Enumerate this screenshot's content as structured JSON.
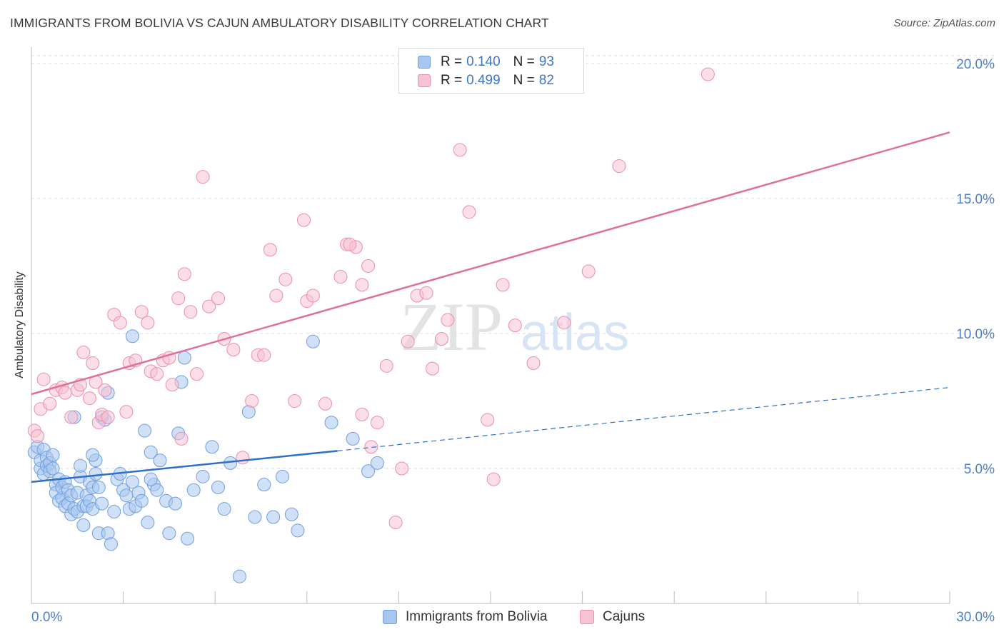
{
  "title": "IMMIGRANTS FROM BOLIVIA VS CAJUN AMBULATORY DISABILITY CORRELATION CHART",
  "source": "Source: ZipAtlas.com",
  "watermark": {
    "zip": "ZIP",
    "atlas": "atlas"
  },
  "legend": {
    "r_label": "R =",
    "n_label": "N =",
    "rows": [
      {
        "r": "0.140",
        "n": "93",
        "color": "#a9c6ef",
        "edge": "#6e9fdf"
      },
      {
        "r": "0.499",
        "n": "82",
        "color": "#f7c3d3",
        "edge": "#ea8fac"
      }
    ]
  },
  "bottom_legend": [
    "Immigrants from Bolivia",
    "Cajuns"
  ],
  "chart_data": {
    "type": "scatter",
    "title": "IMMIGRANTS FROM BOLIVIA VS CAJUN AMBULATORY DISABILITY CORRELATION CHART",
    "xlabel": "",
    "ylabel": "Ambulatory Disability",
    "xlim": [
      0,
      30
    ],
    "ylim": [
      0,
      20.5
    ],
    "x_tick_labels": [
      "0.0%",
      "30.0%"
    ],
    "y_tick_labels": [
      "5.0%",
      "10.0%",
      "15.0%",
      "20.0%"
    ],
    "y_ticks": [
      5,
      10,
      15,
      20
    ],
    "grid": "horizontal dashed",
    "legend_position": "top-center",
    "series": [
      {
        "name": "Immigrants from Bolivia",
        "color": "#a9c6ef",
        "edge": "#6e9fdf",
        "line_color": "#2f6fcc",
        "trend": {
          "x0": 0,
          "y0": 4.5,
          "x1": 10,
          "y1": 5.65,
          "dash_to_x": 30,
          "dash_to_y": 8.0
        },
        "points": [
          [
            0.1,
            5.6
          ],
          [
            0.2,
            5.8
          ],
          [
            0.3,
            5.0
          ],
          [
            0.3,
            5.3
          ],
          [
            0.4,
            5.7
          ],
          [
            0.4,
            4.8
          ],
          [
            0.5,
            5.4
          ],
          [
            0.5,
            5.1
          ],
          [
            0.6,
            5.2
          ],
          [
            0.6,
            4.9
          ],
          [
            0.7,
            5.0
          ],
          [
            0.7,
            5.5
          ],
          [
            0.8,
            4.4
          ],
          [
            0.8,
            4.1
          ],
          [
            0.9,
            4.6
          ],
          [
            0.9,
            3.8
          ],
          [
            1.0,
            3.9
          ],
          [
            1.0,
            4.3
          ],
          [
            1.1,
            4.5
          ],
          [
            1.1,
            3.6
          ],
          [
            1.2,
            3.7
          ],
          [
            1.2,
            4.2
          ],
          [
            1.3,
            4.0
          ],
          [
            1.3,
            3.3
          ],
          [
            1.4,
            3.5
          ],
          [
            1.5,
            3.4
          ],
          [
            1.5,
            4.1
          ],
          [
            1.6,
            4.7
          ],
          [
            1.6,
            5.1
          ],
          [
            1.7,
            3.6
          ],
          [
            1.7,
            2.9
          ],
          [
            1.8,
            4.0
          ],
          [
            1.8,
            3.6
          ],
          [
            1.9,
            4.5
          ],
          [
            1.9,
            3.8
          ],
          [
            2.0,
            3.5
          ],
          [
            2.0,
            4.3
          ],
          [
            2.1,
            4.8
          ],
          [
            2.1,
            5.3
          ],
          [
            2.2,
            4.3
          ],
          [
            2.2,
            2.6
          ],
          [
            2.3,
            3.7
          ],
          [
            2.3,
            6.9
          ],
          [
            2.4,
            6.8
          ],
          [
            2.5,
            2.6
          ],
          [
            2.5,
            7.8
          ],
          [
            2.6,
            2.2
          ],
          [
            2.7,
            3.4
          ],
          [
            2.8,
            4.6
          ],
          [
            2.9,
            4.8
          ],
          [
            3.0,
            4.2
          ],
          [
            3.1,
            4.0
          ],
          [
            3.2,
            3.5
          ],
          [
            3.3,
            4.5
          ],
          [
            3.4,
            3.6
          ],
          [
            3.5,
            4.1
          ],
          [
            3.6,
            3.8
          ],
          [
            3.7,
            6.4
          ],
          [
            3.8,
            3.0
          ],
          [
            3.9,
            5.6
          ],
          [
            4.0,
            4.4
          ],
          [
            4.1,
            4.2
          ],
          [
            4.2,
            5.3
          ],
          [
            4.4,
            3.8
          ],
          [
            4.5,
            2.6
          ],
          [
            4.7,
            3.7
          ],
          [
            4.8,
            6.3
          ],
          [
            4.9,
            8.2
          ],
          [
            5.0,
            9.1
          ],
          [
            5.1,
            2.4
          ],
          [
            5.3,
            4.2
          ],
          [
            5.6,
            4.7
          ],
          [
            5.9,
            5.8
          ],
          [
            6.1,
            4.3
          ],
          [
            6.3,
            3.5
          ],
          [
            6.5,
            5.2
          ],
          [
            6.8,
            1.0
          ],
          [
            7.1,
            7.1
          ],
          [
            7.3,
            3.2
          ],
          [
            7.6,
            4.4
          ],
          [
            7.9,
            3.2
          ],
          [
            8.2,
            4.7
          ],
          [
            8.5,
            3.3
          ],
          [
            8.7,
            2.7
          ],
          [
            9.2,
            9.7
          ],
          [
            9.8,
            6.7
          ],
          [
            10.5,
            6.1
          ],
          [
            11.0,
            4.9
          ],
          [
            11.3,
            5.2
          ],
          [
            3.3,
            9.9
          ],
          [
            2.0,
            5.5
          ],
          [
            1.4,
            6.9
          ],
          [
            3.9,
            4.6
          ]
        ]
      },
      {
        "name": "Cajuns",
        "color": "#f7c3d3",
        "edge": "#ea8fac",
        "line_color": "#e07096",
        "trend": {
          "x0": 0,
          "y0": 7.75,
          "x1": 30,
          "y1": 17.45
        },
        "points": [
          [
            0.1,
            6.4
          ],
          [
            0.2,
            6.2
          ],
          [
            0.3,
            7.2
          ],
          [
            0.4,
            8.3
          ],
          [
            0.6,
            7.4
          ],
          [
            0.8,
            7.9
          ],
          [
            1.0,
            8.0
          ],
          [
            1.1,
            7.8
          ],
          [
            1.3,
            6.9
          ],
          [
            1.5,
            7.9
          ],
          [
            1.6,
            8.1
          ],
          [
            1.7,
            9.3
          ],
          [
            1.9,
            7.6
          ],
          [
            2.0,
            8.9
          ],
          [
            2.1,
            8.2
          ],
          [
            2.2,
            6.7
          ],
          [
            2.3,
            7.0
          ],
          [
            2.4,
            7.9
          ],
          [
            2.5,
            6.9
          ],
          [
            2.7,
            10.7
          ],
          [
            2.9,
            10.4
          ],
          [
            3.1,
            7.1
          ],
          [
            3.2,
            8.9
          ],
          [
            3.4,
            9.0
          ],
          [
            3.6,
            10.8
          ],
          [
            3.8,
            10.4
          ],
          [
            3.9,
            8.6
          ],
          [
            4.1,
            8.5
          ],
          [
            4.3,
            9.0
          ],
          [
            4.5,
            9.1
          ],
          [
            4.6,
            8.1
          ],
          [
            4.8,
            11.3
          ],
          [
            4.9,
            6.1
          ],
          [
            5.0,
            12.2
          ],
          [
            5.2,
            10.8
          ],
          [
            5.4,
            8.5
          ],
          [
            5.6,
            15.8
          ],
          [
            5.8,
            11.0
          ],
          [
            6.1,
            11.3
          ],
          [
            6.3,
            9.8
          ],
          [
            6.6,
            9.4
          ],
          [
            6.9,
            5.4
          ],
          [
            7.2,
            7.5
          ],
          [
            7.4,
            9.2
          ],
          [
            7.6,
            9.2
          ],
          [
            7.8,
            13.1
          ],
          [
            8.0,
            11.4
          ],
          [
            8.3,
            12.0
          ],
          [
            8.6,
            7.5
          ],
          [
            8.9,
            14.2
          ],
          [
            9.0,
            11.2
          ],
          [
            9.2,
            11.4
          ],
          [
            9.6,
            7.4
          ],
          [
            10.1,
            12.1
          ],
          [
            10.3,
            13.3
          ],
          [
            10.6,
            13.2
          ],
          [
            10.8,
            11.8
          ],
          [
            11.0,
            12.5
          ],
          [
            11.3,
            6.7
          ],
          [
            11.6,
            8.8
          ],
          [
            11.9,
            3.0
          ],
          [
            12.1,
            5.0
          ],
          [
            12.3,
            9.7
          ],
          [
            12.6,
            11.4
          ],
          [
            12.9,
            11.5
          ],
          [
            13.1,
            8.7
          ],
          [
            13.4,
            9.8
          ],
          [
            13.6,
            10.5
          ],
          [
            14.0,
            16.8
          ],
          [
            14.3,
            14.5
          ],
          [
            14.9,
            6.8
          ],
          [
            15.1,
            4.6
          ],
          [
            15.4,
            11.8
          ],
          [
            15.8,
            10.3
          ],
          [
            16.4,
            8.9
          ],
          [
            17.4,
            10.4
          ],
          [
            18.2,
            12.3
          ],
          [
            19.2,
            16.2
          ],
          [
            22.1,
            19.6
          ],
          [
            10.4,
            13.3
          ],
          [
            10.8,
            7.0
          ],
          [
            11.1,
            5.8
          ]
        ]
      }
    ]
  }
}
